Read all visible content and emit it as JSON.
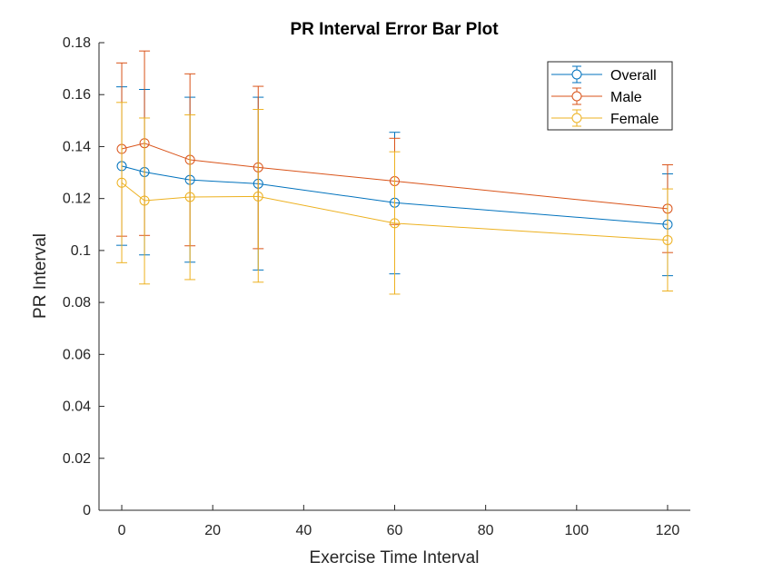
{
  "chart_data": {
    "type": "line",
    "title": "PR Interval Error Bar Plot",
    "xlabel": "Exercise Time Interval",
    "ylabel": "PR Interval",
    "xlim": [
      -5,
      125
    ],
    "ylim": [
      0,
      0.18
    ],
    "xticks": [
      0,
      20,
      40,
      60,
      80,
      100,
      120
    ],
    "xtick_labels": [
      "0",
      "20",
      "40",
      "60",
      "80",
      "100",
      "120"
    ],
    "yticks": [
      0,
      0.02,
      0.04,
      0.06,
      0.08,
      0.1,
      0.12,
      0.14,
      0.16,
      0.18
    ],
    "ytick_labels": [
      "0",
      "0.02",
      "0.04",
      "0.06",
      "0.08",
      "0.1",
      "0.12",
      "0.14",
      "0.16",
      "0.18"
    ],
    "x": [
      0,
      5,
      15,
      30,
      60,
      120
    ],
    "grid": false,
    "legend_position": "top-right",
    "error_bars": true,
    "marker": "circle",
    "series": [
      {
        "name": "Overall",
        "color": "#0072BD",
        "values": [
          0.1325,
          0.1302,
          0.1272,
          0.1257,
          0.1184,
          0.11
        ],
        "err_upper": [
          0.163,
          0.162,
          0.159,
          0.159,
          0.1455,
          0.1295
        ],
        "err_lower": [
          0.102,
          0.0983,
          0.0955,
          0.0925,
          0.091,
          0.0903
        ]
      },
      {
        "name": "Male",
        "color": "#D95319",
        "values": [
          0.1391,
          0.1413,
          0.1349,
          0.132,
          0.1267,
          0.1161
        ],
        "err_upper": [
          0.1722,
          0.1768,
          0.168,
          0.1632,
          0.1432,
          0.133
        ],
        "err_lower": [
          0.1055,
          0.1058,
          0.1018,
          0.1007,
          0.11,
          0.0992
        ]
      },
      {
        "name": "Female",
        "color": "#EDB120",
        "values": [
          0.1261,
          0.1192,
          0.1206,
          0.1208,
          0.1105,
          0.104
        ],
        "err_upper": [
          0.157,
          0.151,
          0.1522,
          0.1543,
          0.138,
          0.1237
        ],
        "err_lower": [
          0.0953,
          0.0871,
          0.0888,
          0.0878,
          0.0832,
          0.0844
        ]
      }
    ]
  }
}
